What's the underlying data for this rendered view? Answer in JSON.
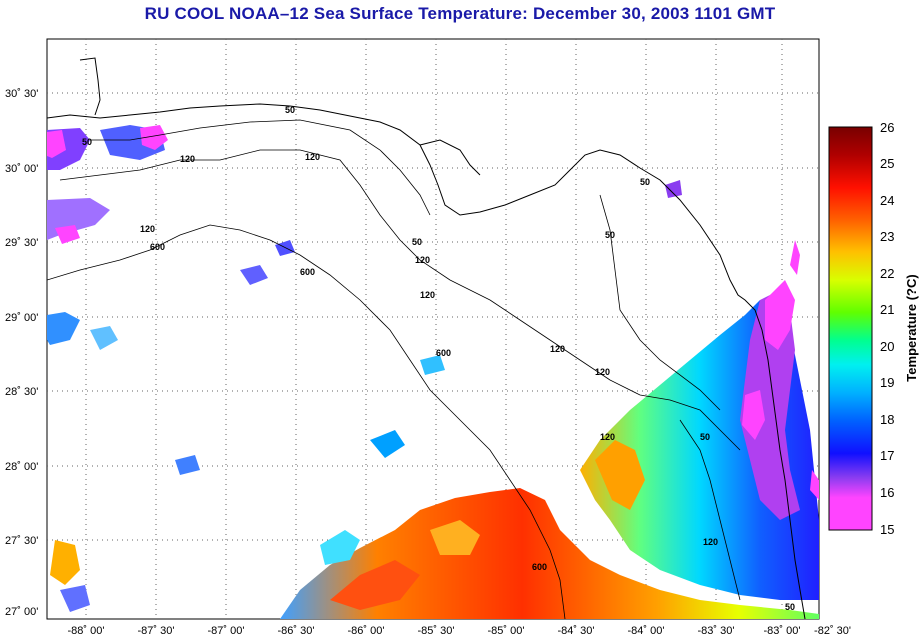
{
  "title": "RU COOL  NOAA–12  Sea Surface Temperature:  December 30, 2003 1101 GMT",
  "latitude_labels": [
    "30˚ 30'",
    "30˚ 00'",
    "29˚ 30'",
    "29˚ 00'",
    "28˚ 30'",
    "28˚ 00'",
    "27˚ 30'",
    "27˚ 00'"
  ],
  "longitude_labels": [
    "-88˚ 00'",
    "-87˚ 30'",
    "-87˚ 00'",
    "-86˚ 30'",
    "-86˚ 00'",
    "-85˚ 30'",
    "-85˚ 00'",
    "-84˚ 30'",
    "-84˚ 00'",
    "-83˚ 30'",
    "-83˚ 00'",
    "-82˚ 30'"
  ],
  "colorbar": {
    "title": "Temperature (?C)",
    "min": 15,
    "max": 26,
    "tick_labels": [
      "26",
      "25",
      "24",
      "23",
      "22",
      "21",
      "20",
      "19",
      "18",
      "17",
      "16",
      "15"
    ],
    "colors": [
      "#ff44ff",
      "#8a3cf0",
      "#1010ff",
      "#0060ff",
      "#00b0ff",
      "#00f0f0",
      "#00ff90",
      "#60ff00",
      "#d8ff00",
      "#ffc000",
      "#ff6000",
      "#ff1000",
      "#b00000",
      "#780000"
    ]
  },
  "contour_labels": [
    "50",
    "50",
    "50",
    "50",
    "50",
    "50",
    "50",
    "120",
    "120",
    "120",
    "120",
    "120",
    "120",
    "120",
    "120",
    "120",
    "600",
    "600",
    "600",
    "600"
  ]
}
